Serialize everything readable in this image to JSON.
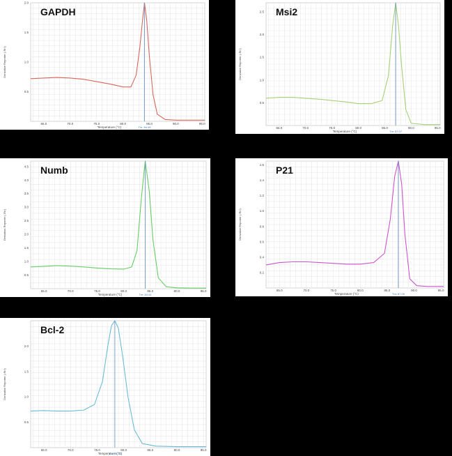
{
  "chart_data": [
    {
      "type": "line",
      "title": "GAPDH",
      "xlabel": "Temperature (°C)",
      "ylabel": "Derivative Reporter (-Rn')",
      "xlim": [
        62.5,
        95.5
      ],
      "ylim": [
        0,
        2.0
      ],
      "xticks": [
        "65.0",
        "70.0",
        "75.0",
        "80.0",
        "85.0",
        "90.0",
        "95.0"
      ],
      "yticks": [
        "0.5",
        "1.0",
        "1.5",
        "2.0"
      ],
      "tm_label": "Tm: 84.08",
      "tm": 84.08,
      "color": "#d9665a",
      "series": [
        {
          "x": [
            62.5,
            65,
            67.5,
            70,
            72.5,
            75,
            77.5,
            80,
            81.5,
            82.5,
            83.2,
            83.7,
            84.08,
            84.5,
            85,
            85.7,
            86.5,
            88,
            90,
            92.5,
            95.5
          ],
          "y": [
            0.72,
            0.73,
            0.74,
            0.73,
            0.71,
            0.67,
            0.63,
            0.58,
            0.58,
            0.78,
            1.25,
            1.7,
            2.0,
            1.7,
            1.1,
            0.45,
            0.12,
            0.03,
            0.02,
            0.02,
            0.02
          ]
        }
      ]
    },
    {
      "type": "line",
      "title": "Msi2",
      "xlabel": "Temperature (°C)",
      "ylabel": "Derivative Reporter (-Rn')",
      "xlim": [
        62.5,
        95.5
      ],
      "ylim": [
        0,
        2.7
      ],
      "xticks": [
        "65.0",
        "70.0",
        "75.0",
        "80.0",
        "85.0",
        "90.0",
        "95.0"
      ],
      "yticks": [
        "0.5",
        "1.0",
        "1.5",
        "2.0",
        "2.5"
      ],
      "tm_label": "Tm: 87.07",
      "tm": 87.07,
      "color": "#a8d07a",
      "series": [
        {
          "x": [
            62.5,
            65,
            67.5,
            70,
            72.5,
            75,
            77.5,
            80,
            82.5,
            84.5,
            85.7,
            86.5,
            87.07,
            87.6,
            88.2,
            89,
            90,
            92.5,
            95.5
          ],
          "y": [
            0.6,
            0.62,
            0.62,
            0.6,
            0.58,
            0.55,
            0.52,
            0.48,
            0.48,
            0.55,
            1.1,
            2.2,
            2.7,
            2.2,
            1.3,
            0.35,
            0.05,
            0.02,
            0.02
          ]
        }
      ]
    },
    {
      "type": "line",
      "title": "Numb",
      "xlabel": "Temperature (°C)",
      "ylabel": "Derivative Reporter (-Rn')",
      "xlim": [
        62.5,
        95.5
      ],
      "ylim": [
        0,
        4.7
      ],
      "xticks": [
        "65.0",
        "70.0",
        "75.0",
        "80.0",
        "85.0",
        "90.0",
        "95.0"
      ],
      "yticks": [
        "0.5",
        "1.0",
        "1.5",
        "2.0",
        "2.5",
        "3.0",
        "3.5",
        "4.0",
        "4.5"
      ],
      "tm_label": "Tm: 84.04",
      "tm": 84.04,
      "color": "#66cc66",
      "series": [
        {
          "x": [
            62.5,
            65,
            67.5,
            70,
            72.5,
            75,
            77.5,
            80,
            81.5,
            82.5,
            83.3,
            84.04,
            84.8,
            85.5,
            86.5,
            88,
            90,
            92.5,
            95.5
          ],
          "y": [
            0.8,
            0.82,
            0.85,
            0.83,
            0.8,
            0.76,
            0.73,
            0.72,
            0.8,
            1.4,
            3.3,
            4.7,
            3.6,
            1.8,
            0.4,
            0.07,
            0.03,
            0.02,
            0.02
          ]
        }
      ]
    },
    {
      "type": "line",
      "title": "P21",
      "xlabel": "Temperature (°C)",
      "ylabel": "Derivative Reporter (-Rn')",
      "xlim": [
        62.5,
        95.5
      ],
      "ylim": [
        0,
        1.65
      ],
      "xticks": [
        "65.0",
        "70.0",
        "75.0",
        "80.0",
        "85.0",
        "90.0",
        "95.0"
      ],
      "yticks": [
        "0.2",
        "0.4",
        "0.6",
        "0.8",
        "1.0",
        "1.2",
        "1.4",
        "1.6"
      ],
      "tm_label": "Tm: 87.09",
      "tm": 87.09,
      "color": "#cc55cc",
      "series": [
        {
          "x": [
            62.5,
            65,
            67.5,
            70,
            72.5,
            75,
            77.5,
            80,
            82.5,
            84.5,
            85.6,
            86.4,
            87.09,
            87.7,
            88.3,
            89.2,
            90.5,
            92.5,
            95.5
          ],
          "y": [
            0.3,
            0.33,
            0.34,
            0.34,
            0.33,
            0.32,
            0.31,
            0.31,
            0.33,
            0.45,
            0.9,
            1.45,
            1.65,
            1.35,
            0.7,
            0.12,
            0.03,
            0.02,
            0.02
          ]
        }
      ]
    },
    {
      "type": "line",
      "title": "Bcl-2",
      "xlabel": "Temperature (°C)",
      "ylabel": "Derivative Reporter (-Rn')",
      "xlim": [
        62.5,
        95.5
      ],
      "ylim": [
        0,
        2.5
      ],
      "xticks": [
        "65.0",
        "70.0",
        "75.0",
        "80.0",
        "85.0",
        "90.0",
        "95.0"
      ],
      "yticks": [
        "0.5",
        "1.0",
        "1.5",
        "2.0"
      ],
      "tm_label": "Tm: 78.33",
      "tm": 78.33,
      "color": "#6bbcd6",
      "series": [
        {
          "x": [
            62.5,
            65,
            67.5,
            70,
            72.5,
            74.5,
            76,
            77,
            77.7,
            78.33,
            79,
            79.8,
            80.8,
            82,
            83.5,
            86,
            90,
            95.5
          ],
          "y": [
            0.72,
            0.73,
            0.72,
            0.72,
            0.74,
            0.85,
            1.3,
            2.0,
            2.4,
            2.5,
            2.35,
            1.8,
            1.0,
            0.35,
            0.08,
            0.03,
            0.02,
            0.02
          ]
        }
      ]
    }
  ]
}
